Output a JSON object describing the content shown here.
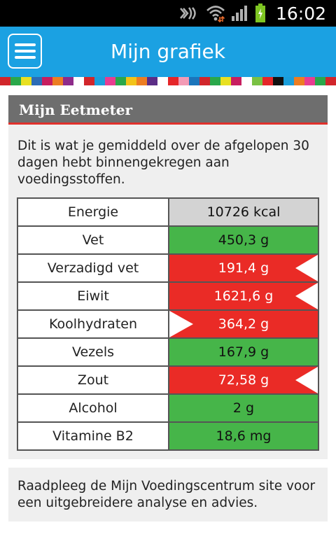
{
  "status": {
    "time": "16:02",
    "icons": [
      "nfc-icon",
      "wifi-icon",
      "signal-icon",
      "battery-charging-icon"
    ],
    "colors": {
      "background": "#000000",
      "battery": "#7ec522"
    }
  },
  "appbar": {
    "title": "Mijn grafiek",
    "menu_icon": "hamburger-menu-icon",
    "color": "#1ba1e2"
  },
  "strip_colors": [
    "#d1262b",
    "#2aa84a",
    "#e8e021",
    "#2c6cb6",
    "#c71e5f",
    "#ec7d22",
    "#8e2b8a",
    "#ffffff",
    "#d1262b",
    "#1a9edb",
    "#e83d91",
    "#2aa84a",
    "#f2c318",
    "#ec7d22",
    "#5b2d86",
    "#ffffff",
    "#e52629",
    "#f39ab5",
    "#1b75bb",
    "#d1262b",
    "#2aa84a",
    "#e8e021",
    "#c71e5f",
    "#ffffff",
    "#7ac143",
    "#e52629",
    "#111111",
    "#1a9edb",
    "#ec7d22",
    "#e83d91",
    "#2aa84a",
    "#d1262b"
  ],
  "card": {
    "title": "Mijn Eetmeter",
    "intro": "Dit is wat je gemiddeld over de afgelopen 30 dagen hebt binnengekregen aan voedingsstoffen.",
    "rows": [
      {
        "label": "Energie",
        "value": "10726 kcal",
        "status": "grey",
        "marker": "none"
      },
      {
        "label": "Vet",
        "value": "450,3 g",
        "status": "green",
        "marker": "none"
      },
      {
        "label": "Verzadigd vet",
        "value": "191,4 g",
        "status": "red",
        "marker": "too-much"
      },
      {
        "label": "Eiwit",
        "value": "1621,6 g",
        "status": "red",
        "marker": "too-much"
      },
      {
        "label": "Koolhydraten",
        "value": "364,2 g",
        "status": "red",
        "marker": "too-little"
      },
      {
        "label": "Vezels",
        "value": "167,9 g",
        "status": "green",
        "marker": "none"
      },
      {
        "label": "Zout",
        "value": "72,58 g",
        "status": "red",
        "marker": "too-much"
      },
      {
        "label": "Alcohol",
        "value": "2 g",
        "status": "green",
        "marker": "none"
      },
      {
        "label": "Vitamine B2",
        "value": "18,6 mg",
        "status": "green",
        "marker": "none"
      }
    ],
    "colors": {
      "header": "#6e6e6e",
      "header_underline": "#e0302b",
      "good": "#46b549",
      "bad": "#ea2b26",
      "neutral": "#d3d3d3"
    }
  },
  "footer": {
    "text": "Raadpleeg de Mijn Voedingscentrum site voor een uitgebreidere analyse en advies."
  }
}
